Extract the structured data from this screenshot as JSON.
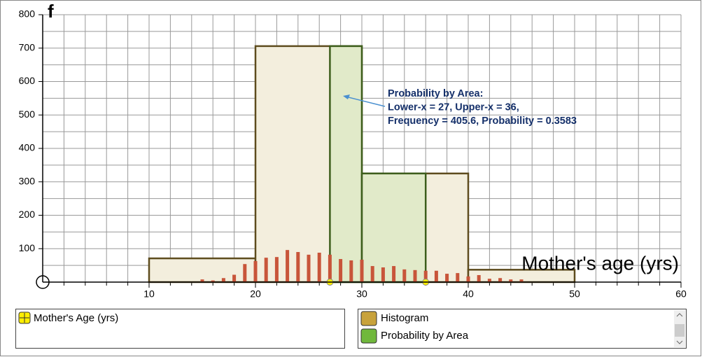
{
  "chart_data": {
    "type": "histogram",
    "x_label": "Mother's age (yrs)",
    "y_label": "f",
    "xlim": [
      0,
      60
    ],
    "ylim": [
      0,
      800
    ],
    "xticks": [
      10,
      20,
      30,
      40,
      50,
      60
    ],
    "yticks": [
      100,
      200,
      300,
      400,
      500,
      600,
      700,
      800
    ],
    "grid": true,
    "grid_step": [
      2,
      50
    ],
    "histogram": {
      "name": "Histogram",
      "color": "#c8a23c",
      "bins": [
        10,
        20,
        30,
        40,
        50
      ],
      "counts": [
        71,
        706,
        325,
        37
      ]
    },
    "raw": {
      "name": "Mother's Age (yrs)",
      "color": "#c8553a",
      "x": [
        15,
        16,
        17,
        18,
        19,
        20,
        21,
        22,
        23,
        24,
        25,
        26,
        27,
        28,
        29,
        30,
        31,
        32,
        33,
        34,
        35,
        36,
        37,
        38,
        39,
        40,
        41,
        42,
        43,
        44,
        45
      ],
      "values": [
        8,
        5,
        12,
        22,
        54,
        63,
        73,
        75,
        96,
        90,
        82,
        88,
        82,
        69,
        65,
        67,
        48,
        44,
        48,
        38,
        36,
        34,
        34,
        25,
        27,
        17,
        21,
        10,
        12,
        8,
        8
      ]
    },
    "probability": {
      "name": "Probability by Area",
      "color": "#70b83c",
      "lower": 27,
      "upper": 36,
      "annotation": [
        "Probability by Area:",
        "Lower-x = 27, Upper-x = 36,",
        "Frequency = 405.6, Probability = 0.3583"
      ]
    }
  }
}
